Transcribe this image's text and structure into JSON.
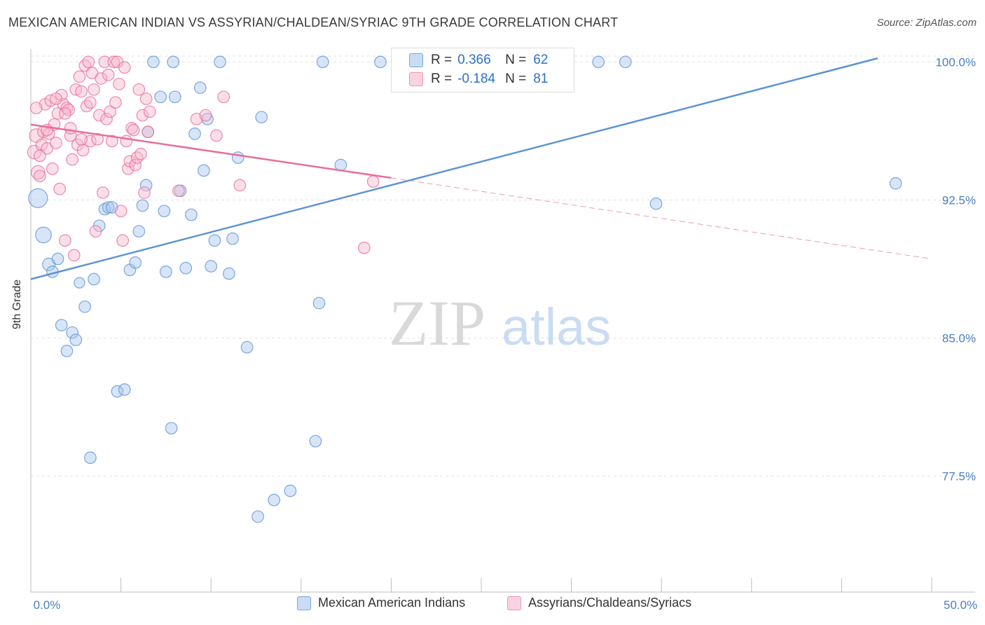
{
  "header": {
    "title": "MEXICAN AMERICAN INDIAN VS ASSYRIAN/CHALDEAN/SYRIAC 9TH GRADE CORRELATION CHART",
    "source": "Source: ZipAtlas.com"
  },
  "watermark": {
    "zip": "ZIP",
    "atlas": "atlas"
  },
  "stats_box": {
    "rows": [
      {
        "r_label": "R =",
        "r_value": "0.366",
        "n_label": "N =",
        "n_value": "62",
        "color": "#a9c6ef"
      },
      {
        "r_label": "R =",
        "r_value": "-0.184",
        "n_label": "N =",
        "n_value": "81",
        "color": "#f6b8cc"
      }
    ]
  },
  "legend": {
    "items": [
      {
        "label": "Mexican American Indians",
        "color": "#a9c6ef"
      },
      {
        "label": "Assyrians/Chaldeans/Syriacs",
        "color": "#f6b8cc"
      }
    ]
  },
  "chart_data": {
    "type": "scatter",
    "title": "MEXICAN AMERICAN INDIAN VS ASSYRIAN/CHALDEAN/SYRIAC 9TH GRADE CORRELATION CHART",
    "xlabel": "",
    "ylabel": "9th Grade",
    "xlim": [
      0,
      50
    ],
    "ylim": [
      71.2,
      100.7
    ],
    "x_tick_labels": [
      "0.0%",
      "50.0%"
    ],
    "y_ticks": [
      77.5,
      85.0,
      92.5,
      100.0
    ],
    "y_tick_labels": [
      "77.5%",
      "85.0%",
      "92.5%",
      "100.0%"
    ],
    "grid": true,
    "legend_position": "bottom",
    "series": [
      {
        "name": "Mexican American Indians",
        "color": "#5b93d6",
        "fill": "#a9c6ef",
        "trend": {
          "x": [
            0,
            47
          ],
          "y": [
            88.2,
            100.2
          ],
          "dashed_to": null
        },
        "points": [
          [
            0.4,
            92.6,
            18
          ],
          [
            0.7,
            90.6,
            15
          ],
          [
            1.0,
            89.0,
            12
          ],
          [
            1.2,
            88.6,
            11
          ],
          [
            1.5,
            89.3,
            11
          ],
          [
            1.7,
            85.7,
            11
          ],
          [
            2.0,
            84.3,
            11
          ],
          [
            2.3,
            85.3,
            11
          ],
          [
            2.5,
            84.9,
            11
          ],
          [
            2.7,
            88.0,
            10
          ],
          [
            3.0,
            86.7,
            11
          ],
          [
            3.3,
            78.5,
            11
          ],
          [
            3.5,
            88.2,
            11
          ],
          [
            3.8,
            91.1,
            11
          ],
          [
            4.1,
            92.0,
            11
          ],
          [
            4.3,
            92.1,
            11
          ],
          [
            4.5,
            92.1,
            11
          ],
          [
            4.8,
            82.1,
            11
          ],
          [
            5.2,
            82.2,
            11
          ],
          [
            5.5,
            88.7,
            11
          ],
          [
            5.8,
            89.1,
            11
          ],
          [
            6.0,
            90.8,
            11
          ],
          [
            6.2,
            92.2,
            11
          ],
          [
            6.4,
            93.3,
            11
          ],
          [
            6.5,
            96.2,
            11
          ],
          [
            6.8,
            100.0,
            11
          ],
          [
            7.2,
            98.1,
            11
          ],
          [
            7.4,
            91.9,
            11
          ],
          [
            7.5,
            88.6,
            11
          ],
          [
            7.8,
            80.1,
            11
          ],
          [
            7.9,
            100.0,
            11
          ],
          [
            8.0,
            98.1,
            11
          ],
          [
            8.3,
            93.0,
            11
          ],
          [
            8.6,
            88.8,
            11
          ],
          [
            8.9,
            91.7,
            11
          ],
          [
            9.1,
            96.1,
            11
          ],
          [
            9.4,
            98.6,
            11
          ],
          [
            9.6,
            94.1,
            11
          ],
          [
            9.8,
            96.9,
            11
          ],
          [
            10.0,
            88.9,
            11
          ],
          [
            10.2,
            90.3,
            11
          ],
          [
            10.5,
            100.0,
            11
          ],
          [
            11.0,
            88.5,
            11
          ],
          [
            11.2,
            90.4,
            11
          ],
          [
            11.5,
            94.8,
            11
          ],
          [
            12.0,
            84.5,
            11
          ],
          [
            12.6,
            75.3,
            11
          ],
          [
            12.8,
            97.0,
            11
          ],
          [
            13.5,
            76.2,
            11
          ],
          [
            14.4,
            76.7,
            11
          ],
          [
            15.8,
            79.4,
            11
          ],
          [
            16.0,
            86.9,
            11
          ],
          [
            16.2,
            100.0,
            11
          ],
          [
            17.2,
            94.4,
            11
          ],
          [
            19.4,
            100.0,
            11
          ],
          [
            22.0,
            100.0,
            11
          ],
          [
            24.0,
            100.0,
            11
          ],
          [
            29.7,
            100.0,
            11
          ],
          [
            31.5,
            100.0,
            11
          ],
          [
            33.0,
            100.0,
            11
          ],
          [
            34.7,
            92.3,
            11
          ],
          [
            48.0,
            93.4,
            11
          ]
        ]
      },
      {
        "name": "Assyrians/Chaldeans/Syriacs",
        "color": "#e86e98",
        "fill": "#f6b8cc",
        "trend": {
          "x": [
            0,
            20
          ],
          "y": [
            96.6,
            93.7
          ],
          "dashed_to": [
            50,
            89.3
          ]
        },
        "points": [
          [
            0.2,
            95.1,
            13
          ],
          [
            0.3,
            96.0,
            13
          ],
          [
            0.4,
            94.0,
            13
          ],
          [
            0.5,
            93.8,
            11
          ],
          [
            0.6,
            95.5,
            11
          ],
          [
            0.7,
            96.2,
            11
          ],
          [
            0.8,
            97.7,
            11
          ],
          [
            0.9,
            95.3,
            11
          ],
          [
            1.0,
            96.1,
            11
          ],
          [
            1.1,
            97.9,
            11
          ],
          [
            1.2,
            94.2,
            11
          ],
          [
            1.3,
            96.6,
            11
          ],
          [
            1.4,
            95.6,
            11
          ],
          [
            1.5,
            97.2,
            11
          ],
          [
            1.6,
            93.1,
            11
          ],
          [
            1.7,
            98.2,
            11
          ],
          [
            1.8,
            97.7,
            11
          ],
          [
            1.9,
            90.3,
            11
          ],
          [
            2.0,
            97.5,
            11
          ],
          [
            2.1,
            97.4,
            11
          ],
          [
            2.2,
            96.0,
            11
          ],
          [
            2.3,
            94.7,
            11
          ],
          [
            2.4,
            89.5,
            11
          ],
          [
            2.5,
            98.5,
            11
          ],
          [
            2.6,
            95.5,
            11
          ],
          [
            2.7,
            99.2,
            11
          ],
          [
            2.8,
            98.4,
            11
          ],
          [
            2.9,
            95.2,
            11
          ],
          [
            3.0,
            99.8,
            11
          ],
          [
            3.1,
            97.6,
            11
          ],
          [
            3.2,
            100.0,
            11
          ],
          [
            3.3,
            95.7,
            11
          ],
          [
            3.4,
            99.4,
            11
          ],
          [
            3.5,
            98.5,
            11
          ],
          [
            3.6,
            90.8,
            11
          ],
          [
            3.7,
            95.8,
            11
          ],
          [
            3.8,
            97.1,
            11
          ],
          [
            3.9,
            99.1,
            11
          ],
          [
            4.0,
            92.9,
            11
          ],
          [
            4.1,
            100.0,
            11
          ],
          [
            4.2,
            96.9,
            11
          ],
          [
            4.3,
            99.3,
            11
          ],
          [
            4.4,
            97.3,
            11
          ],
          [
            4.5,
            95.7,
            11
          ],
          [
            4.6,
            100.0,
            11
          ],
          [
            4.7,
            97.8,
            11
          ],
          [
            4.8,
            100.0,
            11
          ],
          [
            4.9,
            98.8,
            11
          ],
          [
            5.0,
            91.9,
            11
          ],
          [
            5.1,
            90.3,
            11
          ],
          [
            5.2,
            99.7,
            11
          ],
          [
            5.3,
            95.7,
            11
          ],
          [
            5.4,
            94.2,
            11
          ],
          [
            5.5,
            94.6,
            11
          ],
          [
            5.6,
            96.4,
            11
          ],
          [
            5.7,
            96.3,
            11
          ],
          [
            5.8,
            94.4,
            11
          ],
          [
            5.9,
            94.8,
            11
          ],
          [
            6.0,
            98.5,
            11
          ],
          [
            6.1,
            95.0,
            11
          ],
          [
            6.2,
            97.1,
            11
          ],
          [
            6.3,
            92.9,
            11
          ],
          [
            6.4,
            98.0,
            11
          ],
          [
            6.5,
            96.2,
            11
          ],
          [
            6.6,
            97.3,
            11
          ],
          [
            0.3,
            97.5,
            11
          ],
          [
            0.5,
            94.9,
            11
          ],
          [
            0.9,
            96.3,
            11
          ],
          [
            1.4,
            98.0,
            11
          ],
          [
            1.9,
            97.2,
            11
          ],
          [
            2.2,
            96.4,
            11
          ],
          [
            2.8,
            95.8,
            11
          ],
          [
            3.3,
            97.8,
            11
          ],
          [
            8.2,
            93.0,
            11
          ],
          [
            9.2,
            96.9,
            11
          ],
          [
            9.7,
            97.1,
            11
          ],
          [
            10.3,
            96.0,
            11
          ],
          [
            10.7,
            98.1,
            11
          ],
          [
            11.6,
            93.3,
            11
          ],
          [
            18.5,
            89.9,
            11
          ],
          [
            19.0,
            93.5,
            11
          ]
        ]
      }
    ]
  }
}
